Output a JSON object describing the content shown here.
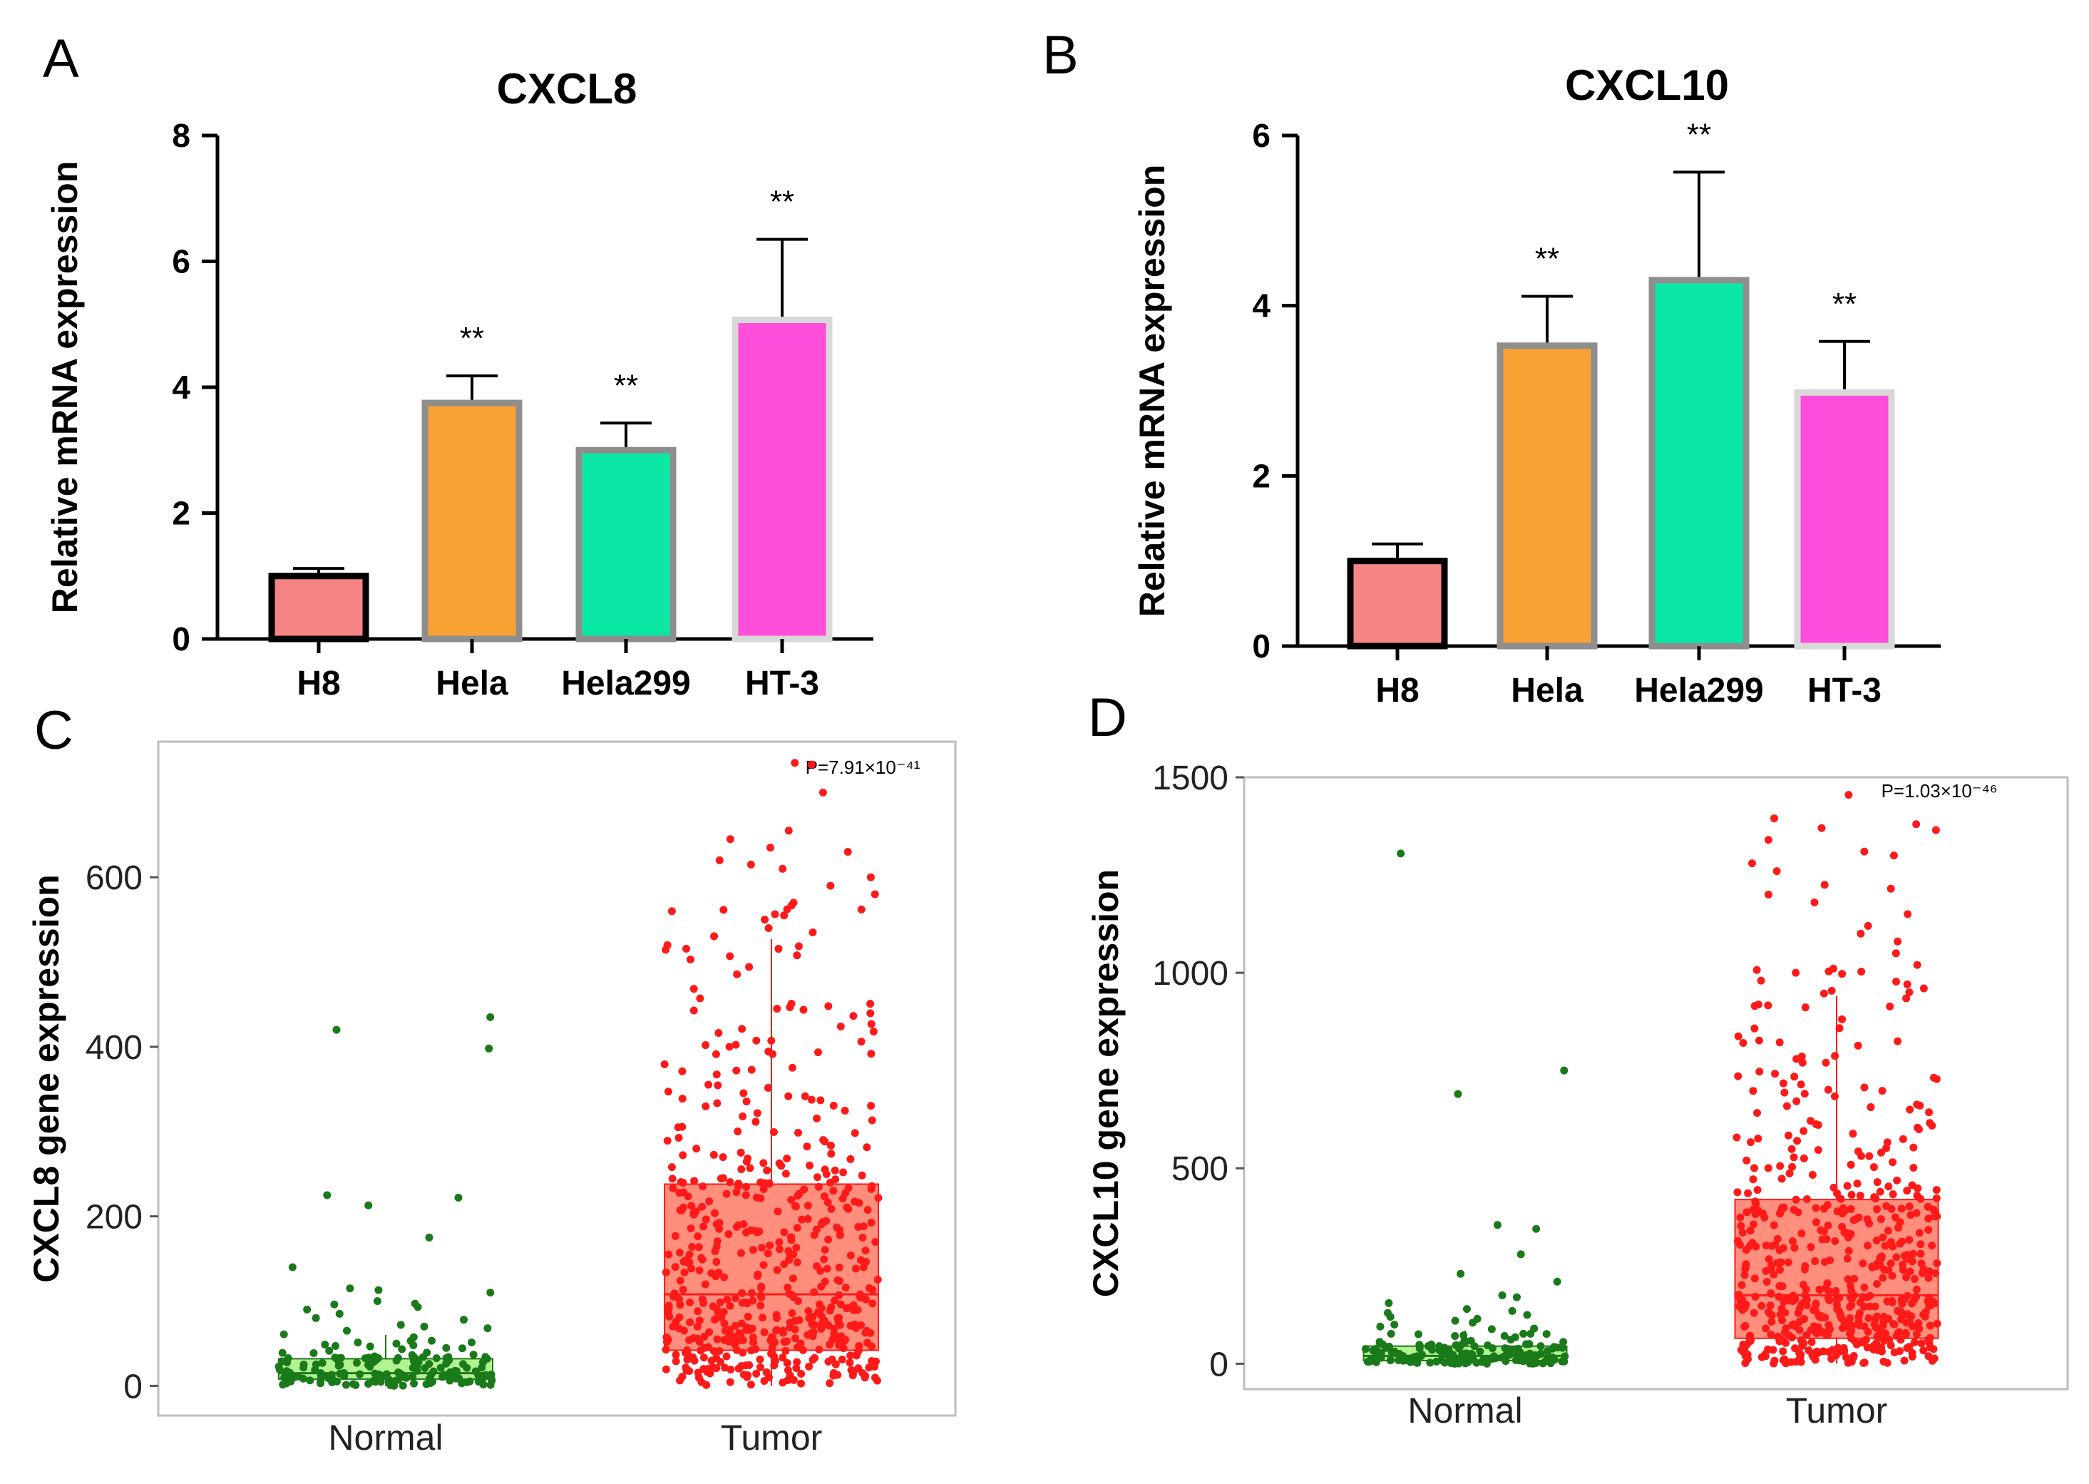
{
  "panels": [
    {
      "letter": "A"
    },
    {
      "letter": "B"
    },
    {
      "letter": "C"
    },
    {
      "letter": "D"
    }
  ],
  "chart_data": [
    {
      "type": "bar",
      "title": "CXCL8",
      "ylabel": "Relative mRNA expression",
      "xlabel": "",
      "ylim": [
        0,
        8
      ],
      "yticks": [
        0,
        2,
        4,
        6,
        8
      ],
      "categories": [
        "H8",
        "Hela",
        "Hela299",
        "HT-3"
      ],
      "values": [
        1.0,
        3.75,
        3.0,
        5.07
      ],
      "errors": [
        0.12,
        0.43,
        0.43,
        1.28
      ],
      "significance": [
        "",
        "**",
        "**",
        "**"
      ],
      "colors": [
        "#f78484",
        "#f9a135",
        "#0be8a5",
        "#ff4ddc"
      ],
      "grid": false
    },
    {
      "type": "bar",
      "title": "CXCL10",
      "ylabel": "Relative mRNA expression",
      "xlabel": "",
      "ylim": [
        0,
        6
      ],
      "yticks": [
        0,
        2,
        4,
        6
      ],
      "categories": [
        "H8",
        "Hela",
        "Hela299",
        "HT-3"
      ],
      "values": [
        1.0,
        3.53,
        4.3,
        2.98
      ],
      "errors": [
        0.2,
        0.58,
        1.27,
        0.6
      ],
      "significance": [
        "",
        "**",
        "**",
        "**"
      ],
      "colors": [
        "#f78484",
        "#f9a135",
        "#0be8a5",
        "#ff4ddc"
      ],
      "grid": false
    },
    {
      "type": "box",
      "title": "",
      "ylabel": "CXCL8 gene expression",
      "xlabel": "",
      "ylim": [
        -35,
        760
      ],
      "yticks": [
        0,
        200,
        400,
        600
      ],
      "categories": [
        "Normal",
        "Tumor"
      ],
      "annotation": "P=7.91×10⁻⁴¹",
      "series": [
        {
          "name": "Normal",
          "q1": 8,
          "median": 15,
          "q3": 32,
          "whisker_low": 0,
          "whisker_high": 60,
          "outliers": [
            435,
            420,
            398,
            225,
            222,
            213,
            175,
            140,
            115,
            113,
            110,
            100,
            97,
            96,
            93,
            90,
            85,
            80,
            78,
            72,
            70,
            68,
            65
          ],
          "n": 160
        },
        {
          "name": "Tumor",
          "q1": 42,
          "median": 108,
          "q3": 238,
          "whisker_low": 0,
          "whisker_high": 527,
          "outliers": [
            735,
            733,
            700,
            655,
            645,
            635,
            630,
            620,
            615,
            610,
            600,
            590,
            580,
            570,
            560,
            555,
            550,
            540,
            535
          ],
          "n": 550
        }
      ],
      "colors": {
        "Normal": "#1a7a1a",
        "Normal_box": "#a6f07c",
        "Tumor": "#ff1a1a",
        "Tumor_box": "#ff7a66"
      },
      "grid": false
    },
    {
      "type": "box",
      "title": "",
      "ylabel": "CXCL10 gene expression",
      "xlabel": "",
      "ylim": [
        -65,
        1500
      ],
      "yticks": [
        0,
        500,
        1000,
        1500
      ],
      "categories": [
        "Normal",
        "Tumor"
      ],
      "annotation": "P=1.03×10⁻⁴⁶",
      "series": [
        {
          "name": "Normal",
          "q1": 8,
          "median": 20,
          "q3": 45,
          "whisker_low": 0,
          "whisker_high": 85,
          "outliers": [
            1305,
            750,
            690,
            355,
            345,
            280,
            230,
            210,
            175,
            170,
            155,
            140,
            135,
            130,
            125,
            120,
            115,
            110,
            105,
            100,
            95,
            90
          ],
          "n": 160
        },
        {
          "name": "Tumor",
          "q1": 65,
          "median": 175,
          "q3": 420,
          "whisker_low": 0,
          "whisker_high": 940,
          "outliers": [
            1455,
            1395,
            1380,
            1370,
            1365,
            1340,
            1310,
            1300,
            1280,
            1260,
            1225,
            1215,
            1200,
            1180,
            1150,
            1120,
            1100,
            1080,
            1050,
            1020,
            1000,
            980,
            960,
            950
          ],
          "n": 560
        }
      ],
      "colors": {
        "Normal": "#1a7a1a",
        "Normal_box": "#a6f07c",
        "Tumor": "#ff1a1a",
        "Tumor_box": "#ff7a66"
      },
      "grid": false
    }
  ]
}
